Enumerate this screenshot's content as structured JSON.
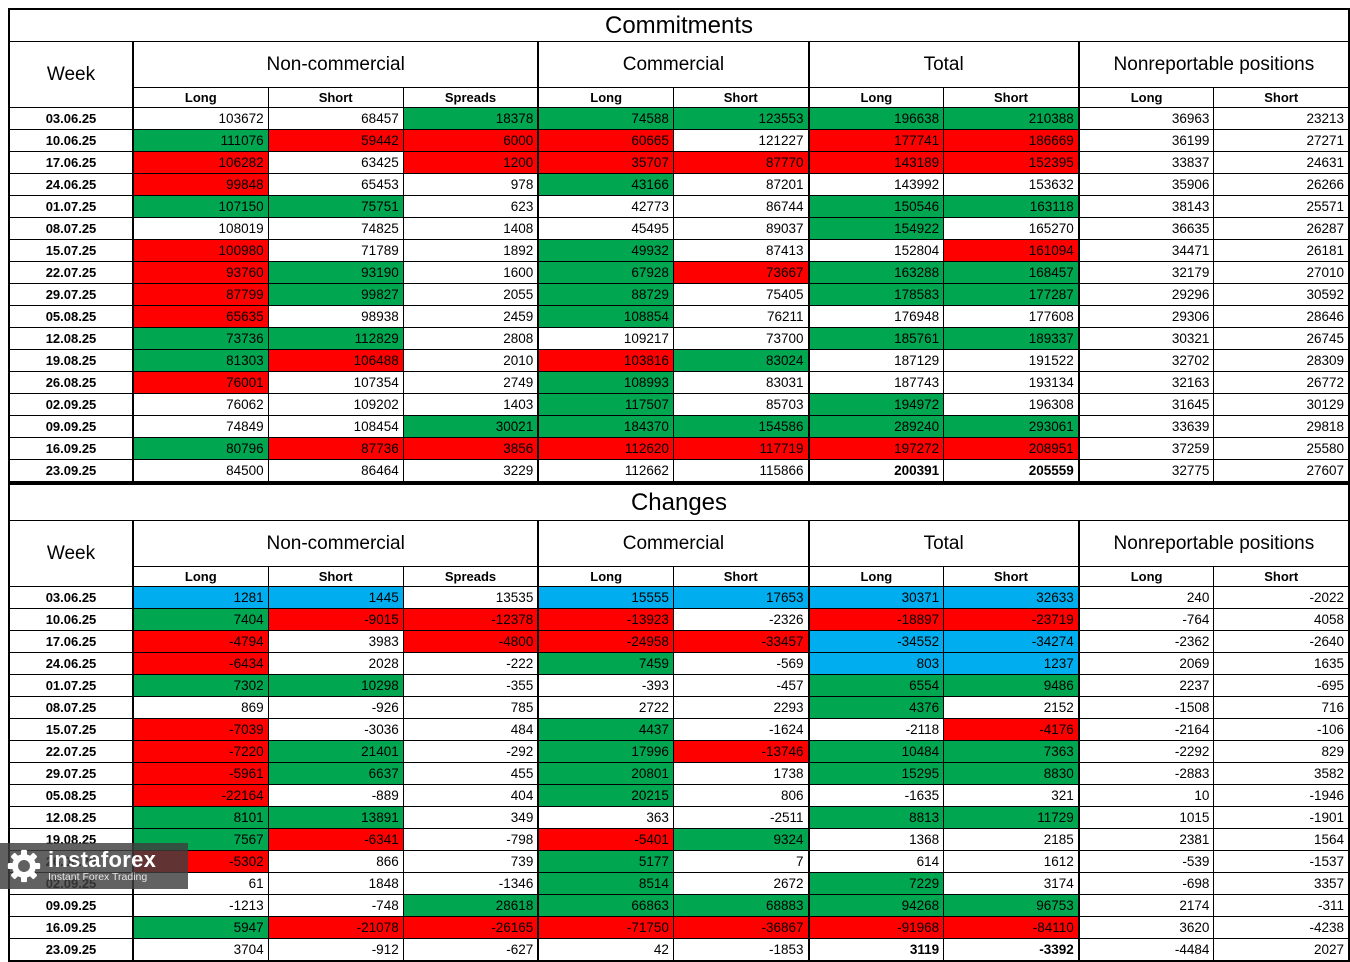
{
  "cell_colors": {
    "w": "#FFFFFF",
    "g": "#00A650",
    "r": "#FF0000",
    "b": "#00AEEF"
  },
  "sections": [
    {
      "id": "commitments",
      "title": "Commitments",
      "week_header": "Week",
      "groups": [
        {
          "label": "Non-commercial",
          "cols": [
            "Long",
            "Short",
            "Spreads"
          ]
        },
        {
          "label": "Commercial",
          "cols": [
            "Long",
            "Short"
          ]
        },
        {
          "label": "Total",
          "cols": [
            "Long",
            "Short"
          ]
        },
        {
          "label": "Nonreportable positions",
          "cols": [
            "Long",
            "Short"
          ]
        }
      ],
      "rows": [
        {
          "week": "03.06.25",
          "values": [
            103672,
            68457,
            18378,
            74588,
            123553,
            196638,
            210388,
            36963,
            23213
          ],
          "colors": [
            "w",
            "w",
            "g",
            "g",
            "g",
            "g",
            "g",
            "w",
            "w"
          ]
        },
        {
          "week": "10.06.25",
          "values": [
            111076,
            59442,
            6000,
            60665,
            121227,
            177741,
            186669,
            36199,
            27271
          ],
          "colors": [
            "g",
            "r",
            "r",
            "r",
            "w",
            "r",
            "r",
            "w",
            "w"
          ]
        },
        {
          "week": "17.06.25",
          "values": [
            106282,
            63425,
            1200,
            35707,
            87770,
            143189,
            152395,
            33837,
            24631
          ],
          "colors": [
            "r",
            "w",
            "r",
            "r",
            "r",
            "r",
            "r",
            "w",
            "w"
          ]
        },
        {
          "week": "24.06.25",
          "values": [
            99848,
            65453,
            978,
            43166,
            87201,
            143992,
            153632,
            35906,
            26266
          ],
          "colors": [
            "r",
            "w",
            "w",
            "g",
            "w",
            "w",
            "w",
            "w",
            "w"
          ]
        },
        {
          "week": "01.07.25",
          "values": [
            107150,
            75751,
            623,
            42773,
            86744,
            150546,
            163118,
            38143,
            25571
          ],
          "colors": [
            "g",
            "g",
            "w",
            "w",
            "w",
            "g",
            "g",
            "w",
            "w"
          ]
        },
        {
          "week": "08.07.25",
          "values": [
            108019,
            74825,
            1408,
            45495,
            89037,
            154922,
            165270,
            36635,
            26287
          ],
          "colors": [
            "w",
            "w",
            "w",
            "w",
            "w",
            "g",
            "w",
            "w",
            "w"
          ]
        },
        {
          "week": "15.07.25",
          "values": [
            100980,
            71789,
            1892,
            49932,
            87413,
            152804,
            161094,
            34471,
            26181
          ],
          "colors": [
            "r",
            "w",
            "w",
            "g",
            "w",
            "w",
            "r",
            "w",
            "w"
          ]
        },
        {
          "week": "22.07.25",
          "values": [
            93760,
            93190,
            1600,
            67928,
            73667,
            163288,
            168457,
            32179,
            27010
          ],
          "colors": [
            "r",
            "g",
            "w",
            "g",
            "r",
            "g",
            "g",
            "w",
            "w"
          ]
        },
        {
          "week": "29.07.25",
          "values": [
            87799,
            99827,
            2055,
            88729,
            75405,
            178583,
            177287,
            29296,
            30592
          ],
          "colors": [
            "r",
            "g",
            "w",
            "g",
            "w",
            "g",
            "g",
            "w",
            "w"
          ]
        },
        {
          "week": "05.08.25",
          "values": [
            65635,
            98938,
            2459,
            108854,
            76211,
            176948,
            177608,
            29306,
            28646
          ],
          "colors": [
            "r",
            "w",
            "w",
            "g",
            "w",
            "w",
            "w",
            "w",
            "w"
          ]
        },
        {
          "week": "12.08.25",
          "values": [
            73736,
            112829,
            2808,
            109217,
            73700,
            185761,
            189337,
            30321,
            26745
          ],
          "colors": [
            "g",
            "g",
            "w",
            "w",
            "w",
            "g",
            "g",
            "w",
            "w"
          ]
        },
        {
          "week": "19.08.25",
          "values": [
            81303,
            106488,
            2010,
            103816,
            83024,
            187129,
            191522,
            32702,
            28309
          ],
          "colors": [
            "g",
            "r",
            "w",
            "r",
            "g",
            "w",
            "w",
            "w",
            "w"
          ]
        },
        {
          "week": "26.08.25",
          "values": [
            76001,
            107354,
            2749,
            108993,
            83031,
            187743,
            193134,
            32163,
            26772
          ],
          "colors": [
            "r",
            "w",
            "w",
            "g",
            "w",
            "w",
            "w",
            "w",
            "w"
          ]
        },
        {
          "week": "02.09.25",
          "values": [
            76062,
            109202,
            1403,
            117507,
            85703,
            194972,
            196308,
            31645,
            30129
          ],
          "colors": [
            "w",
            "w",
            "w",
            "g",
            "w",
            "g",
            "w",
            "w",
            "w"
          ]
        },
        {
          "week": "09.09.25",
          "values": [
            74849,
            108454,
            30021,
            184370,
            154586,
            289240,
            293061,
            33639,
            29818
          ],
          "colors": [
            "w",
            "w",
            "g",
            "g",
            "g",
            "g",
            "g",
            "w",
            "w"
          ]
        },
        {
          "week": "16.09.25",
          "values": [
            80796,
            87736,
            3856,
            112620,
            117719,
            197272,
            208951,
            37259,
            25580
          ],
          "colors": [
            "g",
            "r",
            "r",
            "r",
            "r",
            "r",
            "r",
            "w",
            "w"
          ]
        },
        {
          "week": "23.09.25",
          "values": [
            84500,
            86464,
            3229,
            112662,
            115866,
            200391,
            205559,
            32775,
            27607
          ],
          "colors": [
            "w",
            "w",
            "w",
            "w",
            "w",
            "w",
            "w",
            "w",
            "w"
          ],
          "bold": [
            5,
            6
          ]
        }
      ]
    },
    {
      "id": "changes",
      "title": "Changes",
      "week_header": "Week",
      "groups": [
        {
          "label": "Non-commercial",
          "cols": [
            "Long",
            "Short",
            "Spreads"
          ]
        },
        {
          "label": "Commercial",
          "cols": [
            "Long",
            "Short"
          ]
        },
        {
          "label": "Total",
          "cols": [
            "Long",
            "Short"
          ]
        },
        {
          "label": "Nonreportable positions",
          "cols": [
            "Long",
            "Short"
          ]
        }
      ],
      "rows": [
        {
          "week": "03.06.25",
          "values": [
            1281,
            1445,
            13535,
            15555,
            17653,
            30371,
            32633,
            240,
            -2022
          ],
          "colors": [
            "b",
            "b",
            "w",
            "b",
            "b",
            "b",
            "b",
            "w",
            "w"
          ]
        },
        {
          "week": "10.06.25",
          "values": [
            7404,
            -9015,
            -12378,
            -13923,
            -2326,
            -18897,
            -23719,
            -764,
            4058
          ],
          "colors": [
            "g",
            "r",
            "r",
            "r",
            "w",
            "r",
            "r",
            "w",
            "w"
          ]
        },
        {
          "week": "17.06.25",
          "values": [
            -4794,
            3983,
            -4800,
            -24958,
            -33457,
            -34552,
            -34274,
            -2362,
            -2640
          ],
          "colors": [
            "r",
            "w",
            "r",
            "r",
            "r",
            "b",
            "b",
            "w",
            "w"
          ]
        },
        {
          "week": "24.06.25",
          "values": [
            -6434,
            2028,
            -222,
            7459,
            -569,
            803,
            1237,
            2069,
            1635
          ],
          "colors": [
            "r",
            "w",
            "w",
            "g",
            "w",
            "b",
            "b",
            "w",
            "w"
          ]
        },
        {
          "week": "01.07.25",
          "values": [
            7302,
            10298,
            -355,
            -393,
            -457,
            6554,
            9486,
            2237,
            -695
          ],
          "colors": [
            "g",
            "g",
            "w",
            "w",
            "w",
            "g",
            "g",
            "w",
            "w"
          ]
        },
        {
          "week": "08.07.25",
          "values": [
            869,
            -926,
            785,
            2722,
            2293,
            4376,
            2152,
            -1508,
            716
          ],
          "colors": [
            "w",
            "w",
            "w",
            "w",
            "w",
            "g",
            "w",
            "w",
            "w"
          ]
        },
        {
          "week": "15.07.25",
          "values": [
            -7039,
            -3036,
            484,
            4437,
            -1624,
            -2118,
            -4176,
            -2164,
            -106
          ],
          "colors": [
            "r",
            "w",
            "w",
            "g",
            "w",
            "w",
            "r",
            "w",
            "w"
          ]
        },
        {
          "week": "22.07.25",
          "values": [
            -7220,
            21401,
            -292,
            17996,
            -13746,
            10484,
            7363,
            -2292,
            829
          ],
          "colors": [
            "r",
            "g",
            "w",
            "g",
            "r",
            "g",
            "g",
            "w",
            "w"
          ]
        },
        {
          "week": "29.07.25",
          "values": [
            -5961,
            6637,
            455,
            20801,
            1738,
            15295,
            8830,
            -2883,
            3582
          ],
          "colors": [
            "r",
            "g",
            "w",
            "g",
            "w",
            "g",
            "g",
            "w",
            "w"
          ]
        },
        {
          "week": "05.08.25",
          "values": [
            -22164,
            -889,
            404,
            20215,
            806,
            -1635,
            321,
            10,
            -1946
          ],
          "colors": [
            "r",
            "w",
            "w",
            "g",
            "w",
            "w",
            "w",
            "w",
            "w"
          ]
        },
        {
          "week": "12.08.25",
          "values": [
            8101,
            13891,
            349,
            363,
            -2511,
            8813,
            11729,
            1015,
            -1901
          ],
          "colors": [
            "g",
            "g",
            "w",
            "w",
            "w",
            "g",
            "g",
            "w",
            "w"
          ]
        },
        {
          "week": "19.08.25",
          "values": [
            7567,
            -6341,
            -798,
            -5401,
            9324,
            1368,
            2185,
            2381,
            1564
          ],
          "colors": [
            "g",
            "r",
            "w",
            "r",
            "g",
            "w",
            "w",
            "w",
            "w"
          ]
        },
        {
          "week": "26.08.25",
          "values": [
            -5302,
            866,
            739,
            5177,
            7,
            614,
            1612,
            -539,
            -1537
          ],
          "colors": [
            "r",
            "w",
            "w",
            "g",
            "w",
            "w",
            "w",
            "w",
            "w"
          ]
        },
        {
          "week": "02.09.25",
          "values": [
            61,
            1848,
            -1346,
            8514,
            2672,
            7229,
            3174,
            -698,
            3357
          ],
          "colors": [
            "w",
            "w",
            "w",
            "g",
            "w",
            "g",
            "w",
            "w",
            "w"
          ]
        },
        {
          "week": "09.09.25",
          "values": [
            -1213,
            -748,
            28618,
            66863,
            68883,
            94268,
            96753,
            2174,
            -311
          ],
          "colors": [
            "w",
            "w",
            "g",
            "g",
            "g",
            "g",
            "g",
            "w",
            "w"
          ]
        },
        {
          "week": "16.09.25",
          "values": [
            5947,
            -21078,
            -26165,
            -71750,
            -36867,
            -91968,
            -84110,
            3620,
            -4238
          ],
          "colors": [
            "g",
            "r",
            "r",
            "r",
            "r",
            "r",
            "r",
            "w",
            "w"
          ]
        },
        {
          "week": "23.09.25",
          "values": [
            3704,
            -912,
            -627,
            42,
            -1853,
            3119,
            -3392,
            -4484,
            2027
          ],
          "colors": [
            "w",
            "w",
            "w",
            "w",
            "w",
            "w",
            "w",
            "w",
            "w"
          ],
          "bold": [
            5,
            6
          ]
        }
      ]
    }
  ],
  "logo": {
    "brand": "instaforex",
    "tagline": "Instant Forex Trading"
  }
}
